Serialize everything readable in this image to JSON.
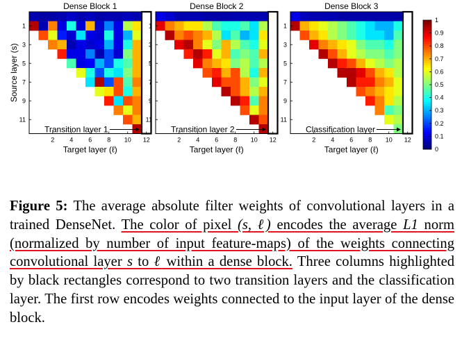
{
  "chart_data": [
    {
      "type": "heatmap",
      "title": "Dense Block 1",
      "xlabel": "Target layer (ℓ)",
      "ylabel": "Source layer (s)",
      "x_ticks": [
        "2",
        "4",
        "6",
        "8",
        "10",
        "12"
      ],
      "y_ticks": [
        "1",
        "3",
        "5",
        "7",
        "9",
        "11"
      ],
      "x_tick_values": [
        2,
        4,
        6,
        8,
        10,
        12
      ],
      "y_tick_values": [
        1,
        3,
        5,
        7,
        9,
        11
      ],
      "annotation": "Transition layer 1",
      "rows": [
        [
          0.05,
          0.04,
          0.04,
          0.05,
          0.07,
          0.05,
          0.06,
          0.04,
          0.05,
          0.05,
          0.06,
          0.05
        ],
        [
          0.95,
          0.05,
          0.75,
          0.1,
          0.4,
          0.08,
          0.7,
          0.08,
          0.25,
          0.1,
          0.55,
          0.65
        ],
        [
          0.8,
          0.6,
          0.15,
          0.08,
          0.35,
          0.1,
          0.08,
          0.4,
          0.1,
          0.3,
          0.6
        ],
        [
          0.75,
          0.7,
          0.05,
          0.1,
          0.08,
          0.1,
          0.3,
          0.1,
          0.4,
          0.7
        ],
        [
          0.85,
          0.1,
          0.1,
          0.25,
          0.05,
          0.2,
          0.08,
          0.5,
          0.7
        ],
        [
          0.45,
          0.1,
          0.12,
          0.3,
          0.2,
          0.4,
          0.45,
          0.7
        ],
        [
          0.6,
          0.4,
          0.2,
          0.4,
          0.35,
          0.5,
          0.7
        ],
        [
          0.35,
          0.95,
          0.2,
          0.8,
          0.45,
          0.75
        ],
        [
          0.6,
          0.65,
          0.8,
          0.4,
          0.7
        ],
        [
          0.85,
          0.35,
          0.8,
          0.75
        ],
        [
          0.75,
          0.6,
          0.75
        ],
        [
          0.8,
          0.7
        ],
        [
          0.95
        ]
      ],
      "colorbar": {
        "min": 0,
        "max": 1,
        "ticks": [
          "0",
          "0.1",
          "0.2",
          "0.3",
          "0.4",
          "0.5",
          "0.6",
          "0.7",
          "0.8",
          "0.9",
          "1"
        ]
      }
    },
    {
      "type": "heatmap",
      "title": "Dense Block 2",
      "xlabel": "Target layer (ℓ)",
      "ylabel": "",
      "x_ticks": [
        "2",
        "4",
        "6",
        "8",
        "10",
        "12"
      ],
      "y_ticks": [
        "1",
        "3",
        "5",
        "7",
        "9",
        "11"
      ],
      "x_tick_values": [
        2,
        4,
        6,
        8,
        10,
        12
      ],
      "y_tick_values": [
        1,
        3,
        5,
        7,
        9,
        11
      ],
      "annotation": "Transition layer 2",
      "rows": [
        [
          0.1,
          0.08,
          0.05,
          0.05,
          0.05,
          0.04,
          0.04,
          0.04,
          0.05,
          0.05,
          0.05,
          0.05
        ],
        [
          0.9,
          0.75,
          0.7,
          0.65,
          0.65,
          0.55,
          0.45,
          0.4,
          0.4,
          0.45,
          0.35,
          0.55
        ],
        [
          0.95,
          0.75,
          0.8,
          0.75,
          0.7,
          0.55,
          0.35,
          0.45,
          0.3,
          0.35,
          0.65
        ],
        [
          0.9,
          0.95,
          0.75,
          0.6,
          0.5,
          0.7,
          0.55,
          0.45,
          0.4,
          0.6
        ],
        [
          0.85,
          0.95,
          0.85,
          0.6,
          0.7,
          0.45,
          0.5,
          0.45,
          0.7
        ],
        [
          0.9,
          0.75,
          0.7,
          0.65,
          0.5,
          0.55,
          0.45,
          0.55
        ],
        [
          0.8,
          0.85,
          0.7,
          0.8,
          0.55,
          0.4,
          0.7
        ],
        [
          0.9,
          0.8,
          0.8,
          0.7,
          0.5,
          0.6
        ],
        [
          0.95,
          0.8,
          0.7,
          0.55,
          0.7
        ],
        [
          0.95,
          0.85,
          0.45,
          0.75
        ],
        [
          0.8,
          0.6,
          0.75
        ],
        [
          0.95,
          0.8
        ],
        [
          0.95
        ]
      ],
      "colorbar": {
        "min": 0,
        "max": 1,
        "ticks": [
          "0",
          "0.1",
          "0.2",
          "0.3",
          "0.4",
          "0.5",
          "0.6",
          "0.7",
          "0.8",
          "0.9",
          "1"
        ]
      }
    },
    {
      "type": "heatmap",
      "title": "Dense Block 3",
      "xlabel": "Target layer (ℓ)",
      "ylabel": "",
      "x_ticks": [
        "2",
        "4",
        "6",
        "8",
        "10",
        "12"
      ],
      "y_ticks": [
        "1",
        "3",
        "5",
        "7",
        "9",
        "11"
      ],
      "x_tick_values": [
        2,
        4,
        6,
        8,
        10,
        12
      ],
      "y_tick_values": [
        1,
        3,
        5,
        7,
        9,
        11
      ],
      "annotation": "Classification layer",
      "rows": [
        [
          0.1,
          0.06,
          0.05,
          0.05,
          0.05,
          0.04,
          0.04,
          0.04,
          0.04,
          0.04,
          0.04,
          0.04
        ],
        [
          0.95,
          0.7,
          0.65,
          0.6,
          0.55,
          0.5,
          0.45,
          0.4,
          0.35,
          0.3,
          0.3,
          0.4
        ],
        [
          0.8,
          0.7,
          0.65,
          0.55,
          0.5,
          0.45,
          0.4,
          0.35,
          0.35,
          0.3,
          0.45
        ],
        [
          0.9,
          0.75,
          0.7,
          0.65,
          0.6,
          0.5,
          0.45,
          0.45,
          0.4,
          0.5
        ],
        [
          0.95,
          0.8,
          0.7,
          0.6,
          0.55,
          0.5,
          0.5,
          0.45,
          0.5
        ],
        [
          0.95,
          0.85,
          0.8,
          0.7,
          0.6,
          0.55,
          0.5,
          0.55
        ],
        [
          0.95,
          0.95,
          0.9,
          0.8,
          0.7,
          0.65,
          0.55
        ],
        [
          0.95,
          0.85,
          0.85,
          0.75,
          0.7,
          0.6
        ],
        [
          0.8,
          0.75,
          0.7,
          0.65,
          0.6
        ],
        [
          0.85,
          0.75,
          0.65,
          0.55
        ],
        [
          0.75,
          0.45,
          0.5
        ],
        [
          0.6,
          0.55
        ],
        [
          0.5
        ]
      ],
      "colorbar": {
        "min": 0,
        "max": 1,
        "ticks": [
          "0",
          "0.1",
          "0.2",
          "0.3",
          "0.4",
          "0.5",
          "0.6",
          "0.7",
          "0.8",
          "0.9",
          "1"
        ]
      }
    }
  ],
  "caption": {
    "label": "Figure 5:",
    "text_1": " The average absolute filter weights of convolutional layers in a trained DenseNet. ",
    "underlined_1": "The color of pixel ",
    "math_pixel": "(s, ℓ)",
    "underlined_2": " encodes the average ",
    "math_norm": "L1",
    "underlined_3": " norm (normalized by number of input feature-maps) of the weights connecting convolutional layer ",
    "math_s": "s",
    "underlined_4": " to ",
    "math_l": "ℓ",
    "underlined_5": " within a dense block.",
    "text_2": " Three columns highlighted by black rectangles correspond to two transition layers and the classification layer. The first row encodes weights connected to the input layer of the dense block."
  },
  "colors": {
    "underline": "#e0141e",
    "highlight_box": "#000000"
  }
}
